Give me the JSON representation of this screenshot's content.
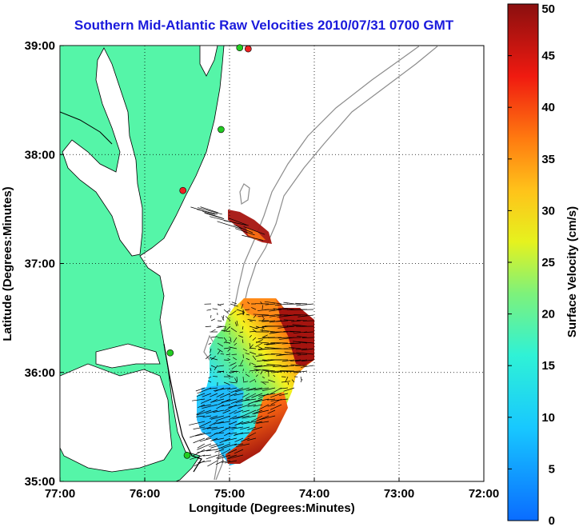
{
  "title": "Southern Mid-Atlantic Raw Velocities 2010/07/31 0700 GMT",
  "x_axis": {
    "label": "Longitude (Degrees:Minutes)",
    "ticks": [
      "77:00",
      "76:00",
      "75:00",
      "74:00",
      "73:00",
      "72:00"
    ]
  },
  "y_axis": {
    "label": "Latitude (Degrees:Minutes)",
    "ticks": [
      "39:00",
      "38:00",
      "37:00",
      "36:00",
      "35:00"
    ]
  },
  "colorbar": {
    "label": "Surface Velocity (cm/s)",
    "ticks": [
      "50",
      "45",
      "40",
      "35",
      "30",
      "25",
      "20",
      "15",
      "10",
      "5",
      "0"
    ],
    "min": 0,
    "max": 50
  },
  "colors": {
    "land": "#55f5a8",
    "coast": "#000000",
    "bathymetry": "#8c8c8c",
    "grid": "#000000",
    "title": "#1a1adc",
    "station_green": "#22cc22",
    "station_red": "#ee2222"
  },
  "grid": "dotted",
  "chart_data": {
    "type": "heatmap",
    "x_range": [
      -77,
      -72
    ],
    "y_range": [
      35,
      39
    ],
    "stations": [
      {
        "lon": -74.88,
        "lat": 38.98,
        "status": "green"
      },
      {
        "lon": -74.78,
        "lat": 38.97,
        "status": "red"
      },
      {
        "lon": -75.1,
        "lat": 38.23,
        "status": "green"
      },
      {
        "lon": -75.55,
        "lat": 37.67,
        "status": "red"
      },
      {
        "lon": -75.7,
        "lat": 36.18,
        "status": "green"
      },
      {
        "lon": -75.5,
        "lat": 35.24,
        "status": "green"
      }
    ]
  }
}
